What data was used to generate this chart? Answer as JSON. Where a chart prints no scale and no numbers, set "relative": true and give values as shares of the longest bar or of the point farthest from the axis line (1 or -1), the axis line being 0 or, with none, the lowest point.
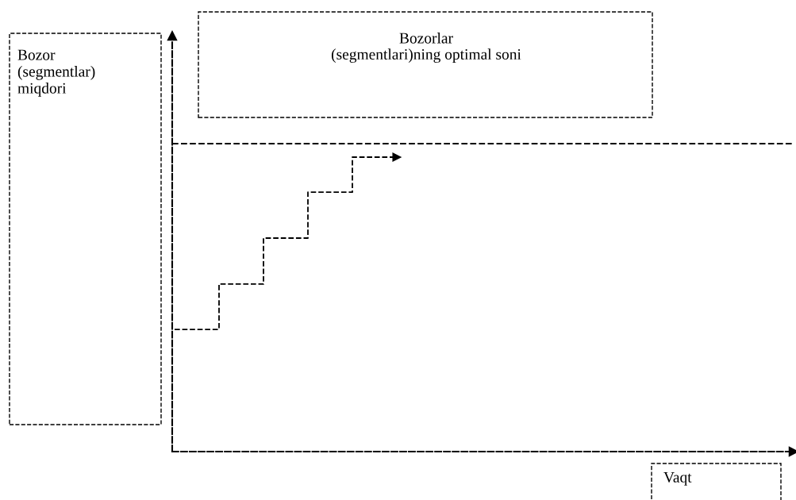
{
  "chart_data": {
    "type": "step",
    "relative": true,
    "annotations": [
      "Bozor\n(segmentlar)\nmiqdori",
      "Vaqt"
    ],
    "categories": [
      null,
      null,
      null,
      null,
      null,
      null
    ],
    "series": [
      {
        "color": "#000000",
        "values": [
          0.415,
          0.569,
          0.725,
          0.881,
          1,
          1
        ]
      }
    ],
    "line_style": "dashed",
    "marker": "none",
    "legend": false,
    "tick_labels": false,
    "ref_lines": [
      {
        "axis": "y",
        "value": 1.046,
        "label": "Bozorlar\n(segmentlari)ning optimal soni",
        "color": "#000000",
        "line_style": "dashed"
      }
    ]
  }
}
